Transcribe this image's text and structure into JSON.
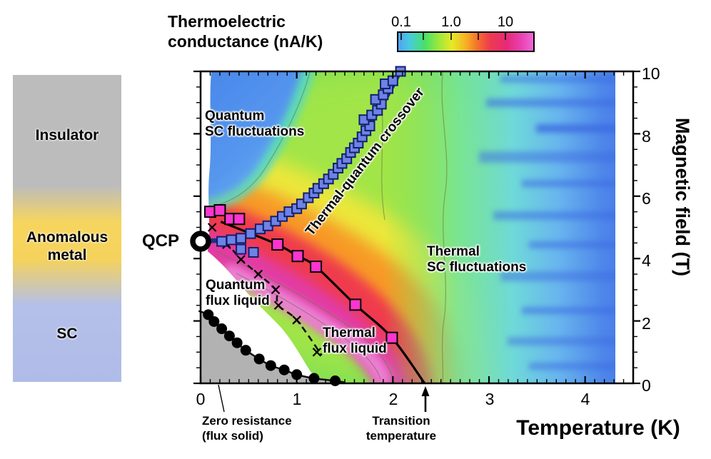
{
  "title": "Thermoelectric\nconductance (nA/K)",
  "colorbar": {
    "tick_labels": [
      "0.1",
      "1.0",
      "10"
    ],
    "scale": "log",
    "units": "nA/K",
    "gradient": [
      "#55a0f2",
      "#46ccdd",
      "#49e06a",
      "#9ce83c",
      "#e6e928",
      "#f6b224",
      "#f4742c",
      "#ee3a50",
      "#e62a78",
      "#e93fae",
      "#ee68d8"
    ]
  },
  "sidebar": {
    "regions": [
      {
        "label": "Insulator",
        "color": "#bcbcbc"
      },
      {
        "label": "Anomalous\nmetal",
        "color": "#f6d55e"
      },
      {
        "label": "SC",
        "color": "#b3bfe9"
      }
    ]
  },
  "axes": {
    "x_label": "Temperature (K)",
    "y_label": "Magnetic field (T)",
    "x_ticks": [
      "0",
      "1",
      "2",
      "3",
      "4"
    ],
    "y_ticks": [
      "10",
      "8",
      "6",
      "4",
      "2",
      "0"
    ],
    "x_range": [
      0,
      4.5
    ],
    "y_range": [
      0,
      10
    ]
  },
  "annotations": {
    "quantum_sc": "Quantum\nSC fluctuations",
    "crossover": "Thermal-quantum crossover",
    "thermal_sc": "Thermal\nSC fluctuations",
    "quantum_flux": "Quantum\nflux liquid",
    "thermal_flux": "Thermal\nflux liquid",
    "qcp": "QCP",
    "zero_resistance": "Zero resistance\n(flux solid)",
    "transition": "Transition\ntemperature"
  },
  "chart_data": {
    "type": "heatmap",
    "title": "Thermoelectric conductance (nA/K)",
    "xlabel": "Temperature (K)",
    "ylabel": "Magnetic field (T)",
    "xlim": [
      0,
      4.5
    ],
    "ylim": [
      0,
      10
    ],
    "colorbar": {
      "scale": "log",
      "ticks": [
        0.1,
        1.0,
        10
      ],
      "units": "nA/K"
    },
    "qcp": {
      "T": 0.0,
      "B": 4.55
    },
    "transition_temperature_K": 2.33,
    "series": [
      {
        "name": "zero resistance boundary (flux solid)",
        "marker": "circle",
        "size": 15,
        "fill": "#000000",
        "stroke": "none",
        "points": [
          [
            0.08,
            2.2
          ],
          [
            0.14,
            1.98
          ],
          [
            0.22,
            1.75
          ],
          [
            0.3,
            1.52
          ],
          [
            0.38,
            1.3
          ],
          [
            0.47,
            1.06
          ],
          [
            0.61,
            0.78
          ],
          [
            0.73,
            0.57
          ],
          [
            0.87,
            0.43
          ],
          [
            1.0,
            0.28
          ],
          [
            1.18,
            0.16
          ],
          [
            1.4,
            0.08
          ]
        ]
      },
      {
        "name": "quantum-thermal flux liquid crossover",
        "marker": "x",
        "size": 11,
        "fill": "none",
        "stroke": "#000000",
        "points": [
          [
            0.12,
            5.0
          ],
          [
            0.27,
            4.45
          ],
          [
            0.42,
            3.97
          ],
          [
            0.6,
            3.5
          ],
          [
            0.78,
            3.0
          ],
          [
            0.81,
            2.5
          ],
          [
            1.0,
            2.03
          ],
          [
            1.21,
            1.0
          ]
        ]
      },
      {
        "name": "flux liquid melting points",
        "marker": "square",
        "size": 15,
        "fill": "#fb35cf",
        "stroke": "#000000",
        "points": [
          [
            0.1,
            5.5
          ],
          [
            0.2,
            5.55
          ],
          [
            0.31,
            5.27
          ],
          [
            0.4,
            5.27
          ],
          [
            0.8,
            4.45
          ],
          [
            1.01,
            4.08
          ],
          [
            1.2,
            3.74
          ],
          [
            1.61,
            2.52
          ],
          [
            1.99,
            1.46
          ]
        ]
      },
      {
        "name": "thermal-quantum crossover points",
        "marker": "square",
        "size": 13,
        "fill": "#6d83e6",
        "stroke": "#131f6e",
        "points": [
          [
            0.22,
            4.55
          ],
          [
            0.32,
            4.6
          ],
          [
            0.42,
            4.3
          ],
          [
            0.55,
            4.2
          ],
          [
            0.42,
            4.65
          ],
          [
            0.52,
            4.8
          ],
          [
            0.62,
            4.95
          ],
          [
            0.7,
            5.05
          ],
          [
            0.78,
            5.2
          ],
          [
            0.85,
            5.35
          ],
          [
            0.92,
            5.5
          ],
          [
            1.0,
            5.6
          ],
          [
            1.05,
            5.75
          ],
          [
            1.12,
            5.95
          ],
          [
            1.18,
            6.1
          ],
          [
            1.22,
            6.25
          ],
          [
            1.28,
            6.4
          ],
          [
            1.33,
            6.55
          ],
          [
            1.38,
            6.7
          ],
          [
            1.43,
            6.9
          ],
          [
            1.47,
            7.05
          ],
          [
            1.52,
            7.2
          ],
          [
            1.56,
            7.4
          ],
          [
            1.6,
            7.55
          ],
          [
            1.64,
            7.7
          ],
          [
            1.68,
            7.9
          ],
          [
            1.72,
            8.1
          ],
          [
            1.76,
            8.25
          ],
          [
            1.7,
            8.45
          ],
          [
            1.78,
            8.6
          ],
          [
            1.84,
            8.75
          ],
          [
            1.88,
            8.95
          ],
          [
            1.82,
            9.1
          ],
          [
            1.9,
            9.25
          ],
          [
            1.95,
            9.45
          ],
          [
            1.92,
            9.6
          ],
          [
            2.0,
            9.7
          ],
          [
            2.08,
            10.0
          ]
        ]
      }
    ],
    "curves": [
      {
        "name": "zero resistance line",
        "color": "#111111",
        "width": 2.5,
        "dash": "none",
        "points": [
          [
            -0.02,
            2.32
          ],
          [
            0.08,
            2.2
          ],
          [
            0.14,
            1.98
          ],
          [
            0.22,
            1.75
          ],
          [
            0.3,
            1.52
          ],
          [
            0.38,
            1.3
          ],
          [
            0.47,
            1.06
          ],
          [
            0.61,
            0.78
          ],
          [
            0.73,
            0.57
          ],
          [
            0.87,
            0.43
          ],
          [
            1.0,
            0.28
          ],
          [
            1.18,
            0.16
          ],
          [
            1.4,
            0.08
          ],
          [
            1.5,
            0.03
          ]
        ]
      },
      {
        "name": "flux liquid dashed crossover line",
        "color": "#111111",
        "width": 2.6,
        "dash": "9 6",
        "points": [
          [
            0.04,
            4.72
          ],
          [
            0.27,
            4.45
          ],
          [
            0.42,
            3.97
          ],
          [
            0.6,
            3.5
          ],
          [
            0.78,
            3.0
          ],
          [
            0.81,
            2.5
          ],
          [
            1.0,
            2.03
          ],
          [
            1.26,
            0.9
          ]
        ]
      },
      {
        "name": "melting line",
        "color": "#000000",
        "width": 3.2,
        "dash": "none",
        "points": [
          [
            0.21,
            5.18
          ],
          [
            0.4,
            4.95
          ],
          [
            0.8,
            4.45
          ],
          [
            1.01,
            4.08
          ],
          [
            1.2,
            3.74
          ],
          [
            1.61,
            2.52
          ],
          [
            1.99,
            1.46
          ],
          [
            2.33,
            0.0
          ]
        ]
      },
      {
        "name": "thermal-quantum crossover line",
        "color": "#1b2f8a",
        "width": 6.5,
        "dash": "none",
        "points": [
          [
            -0.03,
            4.55
          ],
          [
            0.3,
            4.62
          ],
          [
            0.6,
            4.9
          ],
          [
            1.0,
            5.6
          ],
          [
            1.3,
            6.45
          ],
          [
            1.6,
            7.55
          ],
          [
            1.85,
            8.75
          ],
          [
            2.0,
            9.55
          ],
          [
            2.08,
            10.05
          ]
        ]
      }
    ]
  }
}
